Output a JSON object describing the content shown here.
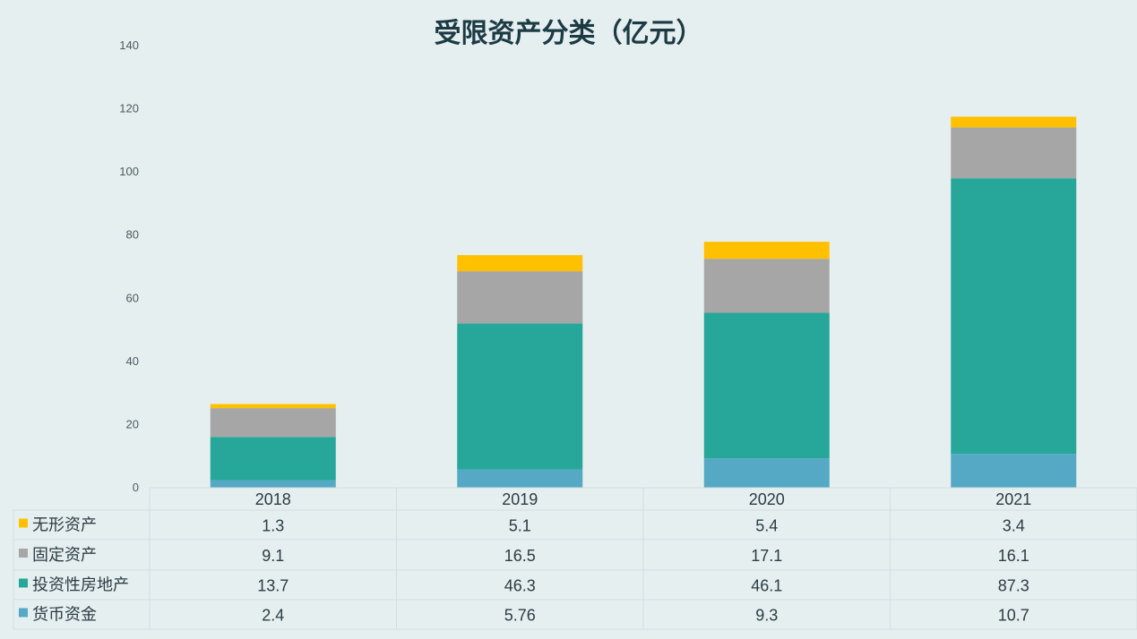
{
  "chart_data": {
    "type": "stacked-bar",
    "title": "受限资产分类（亿元）",
    "categories": [
      "2018",
      "2019",
      "2020",
      "2021"
    ],
    "ylim": [
      0,
      140
    ],
    "yticks": [
      0,
      20,
      40,
      60,
      80,
      100,
      120,
      140
    ],
    "grid": false,
    "legend": "data-table-below",
    "series": [
      {
        "name": "货币资金",
        "color": "#55a9c4",
        "values": [
          2.4,
          5.76,
          9.3,
          10.7
        ]
      },
      {
        "name": "投资性房地产",
        "color": "#27a79a",
        "values": [
          13.7,
          46.3,
          46.1,
          87.3
        ]
      },
      {
        "name": "固定资产",
        "color": "#a6a6a6",
        "values": [
          9.1,
          16.5,
          17.1,
          16.1
        ]
      },
      {
        "name": "无形资产",
        "color": "#ffc000",
        "values": [
          1.3,
          5.1,
          5.4,
          3.4
        ]
      }
    ],
    "table_row_order": [
      "无形资产",
      "固定资产",
      "投资性房地产",
      "货币资金"
    ]
  }
}
